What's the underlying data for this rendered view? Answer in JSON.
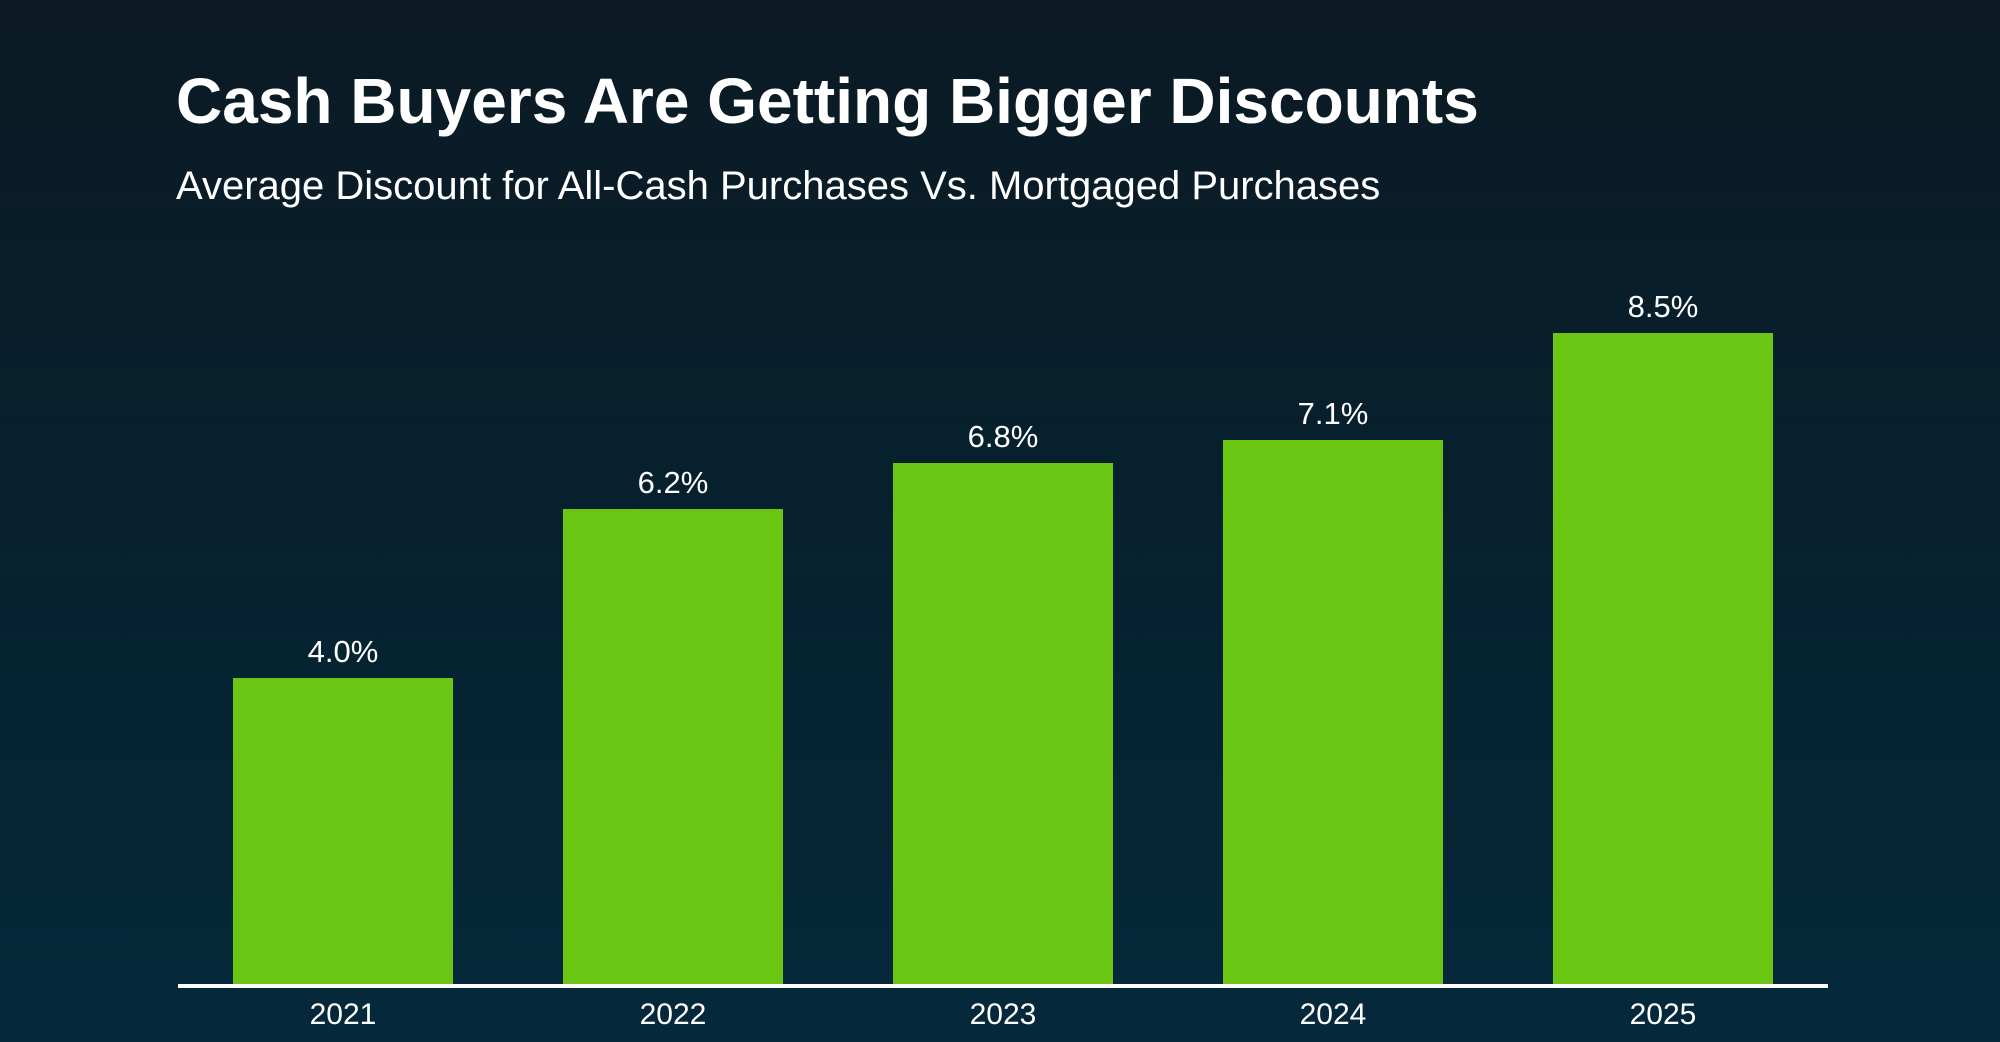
{
  "header": {
    "title": "Cash Buyers Are Getting Bigger Discounts",
    "subtitle": "Average Discount for All-Cash Purchases Vs. Mortgaged Purchases"
  },
  "chart_data": {
    "type": "bar",
    "title": "Cash Buyers Are Getting Bigger Discounts",
    "subtitle": "Average Discount for All-Cash Purchases Vs. Mortgaged Purchases",
    "categories": [
      "2021",
      "2022",
      "2023",
      "2024",
      "2025"
    ],
    "values": [
      4.0,
      6.2,
      6.8,
      7.1,
      8.5
    ],
    "data_labels": [
      "4.0%",
      "6.2%",
      "6.8%",
      "7.1%",
      "8.5%"
    ],
    "xlabel": "",
    "ylabel": "",
    "ylim": [
      0,
      9.7
    ],
    "grid": false,
    "legend": false,
    "colors": {
      "bar": "#6BC613",
      "text": "#FFFFFF",
      "axis_line": "#FFFFFF",
      "background_top": "#0B1A24",
      "background_bottom": "#05293B"
    }
  }
}
